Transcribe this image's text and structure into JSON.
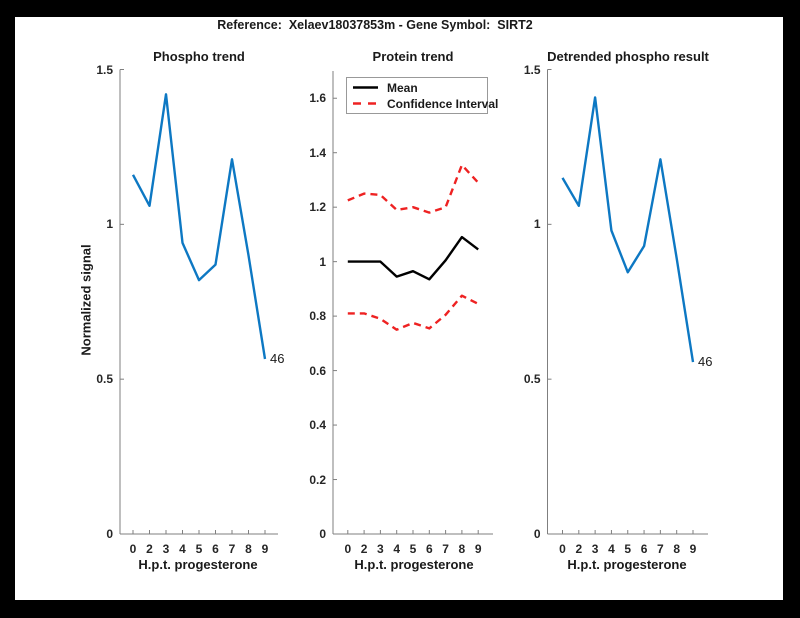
{
  "figure": {
    "title": "Reference:  Xelaev18037853m - Gene Symbol:  SIRT2"
  },
  "colors": {
    "blue": "#0d78c3",
    "red": "#ee2222",
    "black": "#000000",
    "axis": "#7f7f7f",
    "tick_text": "#262626"
  },
  "chart_data": [
    {
      "type": "line",
      "title": "Phospho trend",
      "xlabel": "H.p.t. progesterone",
      "ylabel": "Normalized signal",
      "x_ticklabels": [
        "0",
        "2",
        "3",
        "4",
        "5",
        "6",
        "7",
        "8",
        "9"
      ],
      "ylim": [
        0,
        1.5
      ],
      "yticks": [
        0,
        0.5,
        1,
        1.5
      ],
      "ytick_labels": [
        "0",
        "0.5",
        "1",
        "1.5"
      ],
      "grid": false,
      "series": [
        {
          "name": "phospho-signal",
          "color": "blue",
          "dashed": false,
          "values": [
            1.16,
            1.06,
            1.42,
            0.94,
            0.82,
            0.87,
            1.21,
            0.9,
            0.565
          ]
        }
      ],
      "endpoint_label": "46"
    },
    {
      "type": "line",
      "title": "Protein trend",
      "xlabel": "H.p.t. progesterone",
      "ylabel": "",
      "x_ticklabels": [
        "0",
        "2",
        "3",
        "4",
        "5",
        "6",
        "7",
        "8",
        "9"
      ],
      "ylim": [
        0,
        1.7
      ],
      "yticks": [
        0,
        0.2,
        0.4,
        0.6,
        0.8,
        1,
        1.2,
        1.4,
        1.6
      ],
      "ytick_labels": [
        "0",
        "0.2",
        "0.4",
        "0.6",
        "0.8",
        "1",
        "1.2",
        "1.4",
        "1.6"
      ],
      "grid": false,
      "series": [
        {
          "name": "ci-upper",
          "color": "red",
          "dashed": true,
          "values": [
            1.225,
            1.25,
            1.245,
            1.19,
            1.2,
            1.18,
            1.2,
            1.355,
            1.29
          ]
        },
        {
          "name": "ci-lower",
          "color": "red",
          "dashed": true,
          "values": [
            0.81,
            0.81,
            0.79,
            0.75,
            0.775,
            0.755,
            0.805,
            0.875,
            0.845
          ]
        },
        {
          "name": "mean",
          "color": "black",
          "dashed": false,
          "values": [
            1.0,
            1.0,
            1.0,
            0.945,
            0.965,
            0.935,
            1.005,
            1.09,
            1.045
          ]
        }
      ],
      "legend": {
        "position": "top-left",
        "entries": [
          {
            "label": "Mean",
            "color": "black",
            "dashed": false
          },
          {
            "label": "Confidence Interval",
            "color": "red",
            "dashed": true
          }
        ]
      }
    },
    {
      "type": "line",
      "title": "Detrended phospho result",
      "xlabel": "H.p.t. progesterone",
      "ylabel": "",
      "x_ticklabels": [
        "0",
        "2",
        "3",
        "4",
        "5",
        "6",
        "7",
        "8",
        "9"
      ],
      "ylim": [
        0,
        1.5
      ],
      "yticks": [
        0,
        0.5,
        1,
        1.5
      ],
      "ytick_labels": [
        "0",
        "0.5",
        "1",
        "1.5"
      ],
      "grid": false,
      "series": [
        {
          "name": "detrended-phospho",
          "color": "blue",
          "dashed": false,
          "values": [
            1.15,
            1.06,
            1.41,
            0.98,
            0.845,
            0.93,
            1.21,
            0.89,
            0.555
          ]
        }
      ],
      "endpoint_label": "46"
    }
  ]
}
